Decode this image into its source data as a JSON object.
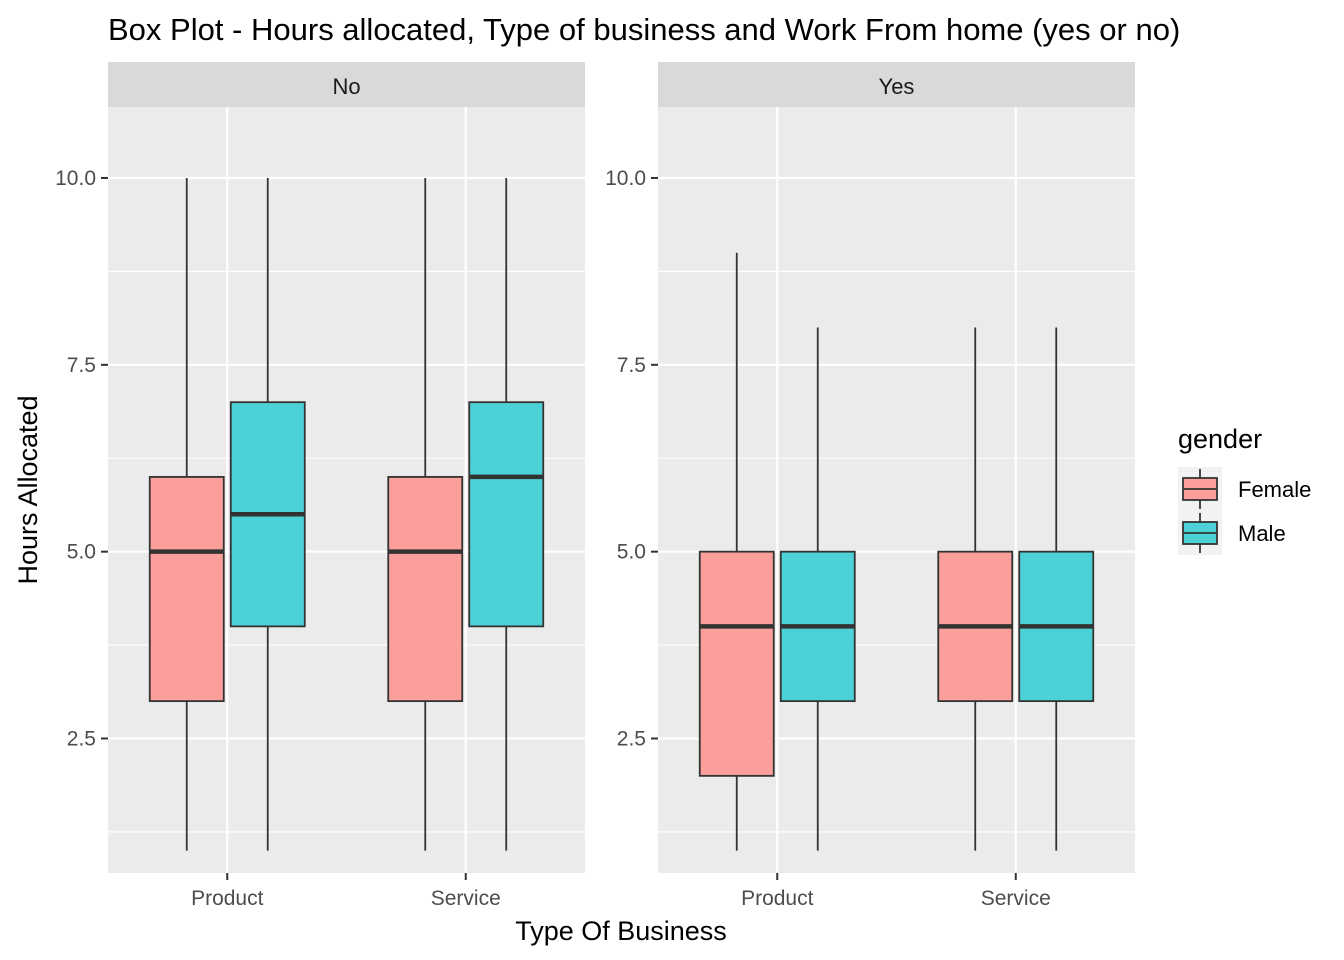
{
  "chart_data": {
    "type": "box",
    "title": "Box Plot - Hours allocated, Type of business and Work From home (yes or no)",
    "xlabel": "Type Of Business",
    "ylabel": "Hours Allocated",
    "ylim": [
      0.7,
      10.95
    ],
    "yticks": [
      2.5,
      5.0,
      7.5,
      10.0
    ],
    "ytick_labels": [
      "2.5",
      "5.0",
      "7.5",
      "10.0"
    ],
    "categories": [
      "Product",
      "Service"
    ],
    "legend": {
      "title": "gender",
      "position": "right",
      "entries": [
        {
          "label": "Female",
          "color": "#F8766D"
        },
        {
          "label": "Male",
          "color": "#00BFC4"
        }
      ]
    },
    "panels": [
      {
        "strip": "No",
        "boxes": [
          {
            "category": "Product",
            "group": "Female",
            "min": 1,
            "q1": 3,
            "median": 5,
            "q3": 6,
            "max": 10
          },
          {
            "category": "Product",
            "group": "Male",
            "min": 1,
            "q1": 4,
            "median": 5.5,
            "q3": 7,
            "max": 10
          },
          {
            "category": "Service",
            "group": "Female",
            "min": 1,
            "q1": 3,
            "median": 5,
            "q3": 6,
            "max": 10
          },
          {
            "category": "Service",
            "group": "Male",
            "min": 1,
            "q1": 4,
            "median": 6,
            "q3": 7,
            "max": 10
          }
        ]
      },
      {
        "strip": "Yes",
        "boxes": [
          {
            "category": "Product",
            "group": "Female",
            "min": 1,
            "q1": 2,
            "median": 4,
            "q3": 5,
            "max": 9
          },
          {
            "category": "Product",
            "group": "Male",
            "min": 1,
            "q1": 3,
            "median": 4,
            "q3": 5,
            "max": 8
          },
          {
            "category": "Service",
            "group": "Female",
            "min": 1,
            "q1": 3,
            "median": 4,
            "q3": 5,
            "max": 8
          },
          {
            "category": "Service",
            "group": "Male",
            "min": 1,
            "q1": 3,
            "median": 4,
            "q3": 5,
            "max": 8
          }
        ]
      }
    ],
    "grid": true,
    "colors": {
      "panel_bg": "#EBEBEB",
      "strip_bg": "#D9D9D9",
      "grid": "#FFFFFF",
      "box_fill_opacity": 0.7,
      "box_line": "#333333"
    }
  }
}
